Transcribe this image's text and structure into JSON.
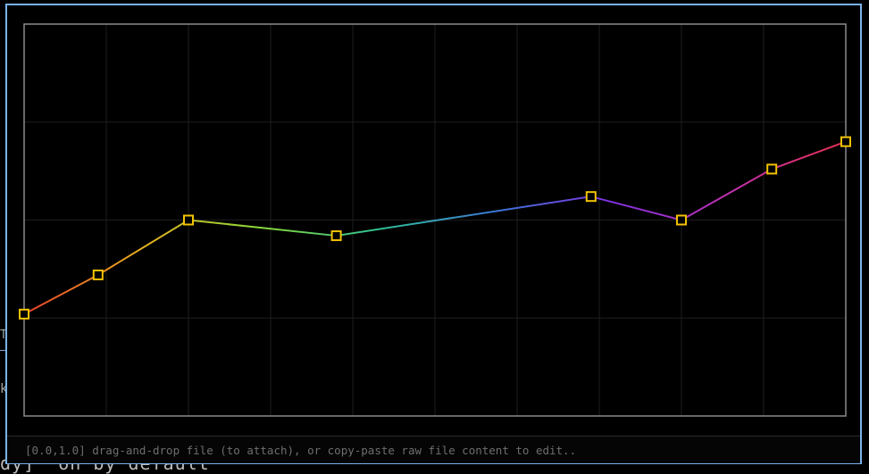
{
  "background": {
    "left_fragment_1": "T",
    "left_fragment_2": "k",
    "bottom_fragment": "dy]  on by default"
  },
  "status_bar": {
    "text": "[0.0,1.0] drag-and-drop file (to attach), or copy-paste raw file content to edit.."
  },
  "colors": {
    "window_border": "#7ab3ea",
    "plot_border": "#8a8a8a",
    "grid": "#1e1e1e",
    "marker": "#f2c200",
    "gradient": [
      "#e8402a",
      "#e8b020",
      "#8ad838",
      "#30c090",
      "#3a78d8",
      "#8030e0",
      "#c030b0",
      "#e83050"
    ]
  },
  "chart_data": {
    "type": "line",
    "title": "",
    "xlabel": "",
    "ylabel": "",
    "xlim": [
      0,
      1
    ],
    "ylim": [
      0,
      1
    ],
    "grid": true,
    "series": [
      {
        "x": [
          0.0,
          0.09,
          0.2,
          0.38,
          0.69,
          0.8,
          0.91,
          1.0
        ],
        "y": [
          0.26,
          0.36,
          0.5,
          0.46,
          0.56,
          0.5,
          0.63,
          0.7
        ]
      }
    ]
  }
}
